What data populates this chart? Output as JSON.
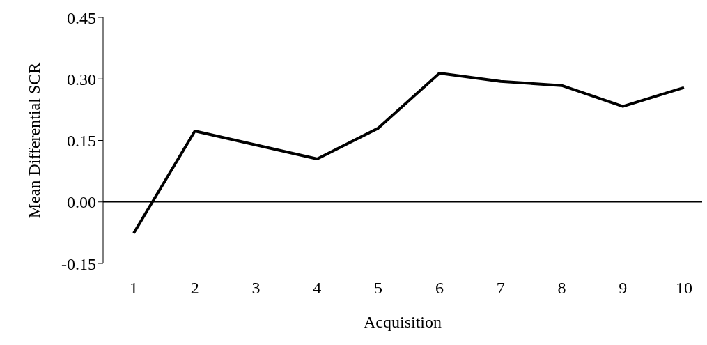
{
  "chart_data": {
    "type": "line",
    "xlabel": "Acquisition",
    "ylabel": "Mean Differential SCR",
    "categories": [
      "1",
      "2",
      "3",
      "4",
      "5",
      "6",
      "7",
      "8",
      "9",
      "10"
    ],
    "series": [
      {
        "color": "#000000",
        "values": [
          -0.076,
          0.173,
          0.139,
          0.105,
          0.18,
          0.314,
          0.294,
          0.284,
          0.233,
          0.279
        ]
      }
    ],
    "ylim": [
      -0.15,
      0.45
    ],
    "yticks": [
      {
        "value": -0.15,
        "label": "-0.15"
      },
      {
        "value": 0,
        "label": "0.00"
      },
      {
        "value": 0.15,
        "label": "0.15"
      },
      {
        "value": 0.3,
        "label": "0.30"
      },
      {
        "value": 0.45,
        "label": "0.45"
      }
    ],
    "ref_lines": [
      {
        "axis": "y",
        "value": 0,
        "color": "#000000"
      }
    ],
    "grid": false,
    "legend": false,
    "marker": "none",
    "line_style": "solid"
  }
}
